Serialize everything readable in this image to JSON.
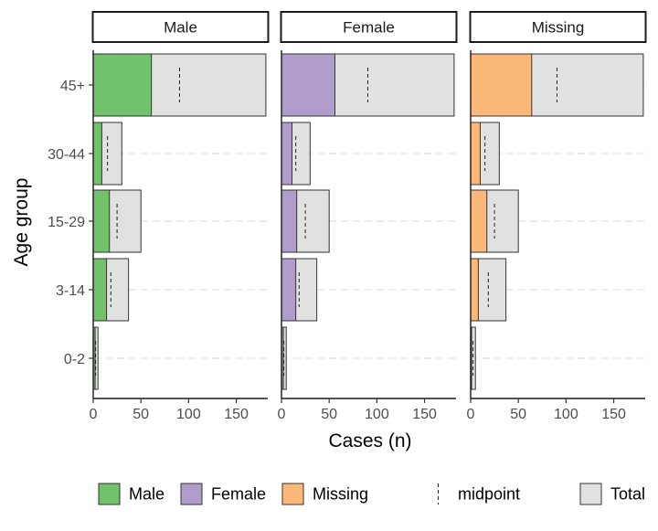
{
  "chart_data": {
    "type": "bar",
    "orientation": "horizontal",
    "xlabel": "Cases (n)",
    "ylabel": "Age group",
    "xlim": [
      0,
      183
    ],
    "x_ticks": [
      0,
      50,
      100,
      150
    ],
    "categories": [
      "0-2",
      "3-14",
      "15-29",
      "30-44",
      "45+"
    ],
    "grid": "dashed horizontal at categories",
    "legend_position": "bottom",
    "panels": [
      {
        "name": "Male",
        "color": "#72C16B",
        "values": [
          2,
          14,
          17,
          9,
          61
        ],
        "totals": [
          5,
          37,
          50,
          30,
          181
        ],
        "midpoints": [
          2.5,
          18.5,
          25,
          15,
          90.5
        ]
      },
      {
        "name": "Female",
        "color": "#B09DCB",
        "values": [
          2,
          15,
          16,
          11,
          56
        ],
        "totals": [
          5,
          37,
          50,
          30,
          181
        ],
        "midpoints": [
          2.5,
          18.5,
          25,
          15,
          90.5
        ]
      },
      {
        "name": "Missing",
        "color": "#FCB879",
        "values": [
          1,
          8,
          17,
          10,
          64
        ],
        "totals": [
          5,
          37,
          50,
          30,
          181
        ],
        "midpoints": [
          2.5,
          18.5,
          25,
          15,
          90.5
        ]
      }
    ],
    "total_color": "#E1E1E1",
    "legend": [
      {
        "label": "Male",
        "kind": "box",
        "color": "#72C16B"
      },
      {
        "label": "Female",
        "kind": "box",
        "color": "#B09DCB"
      },
      {
        "label": "Missing",
        "kind": "box",
        "color": "#FCB879"
      },
      {
        "label": "midpoint",
        "kind": "dash"
      },
      {
        "label": "Total",
        "kind": "box",
        "color": "#E1E1E1"
      }
    ]
  }
}
